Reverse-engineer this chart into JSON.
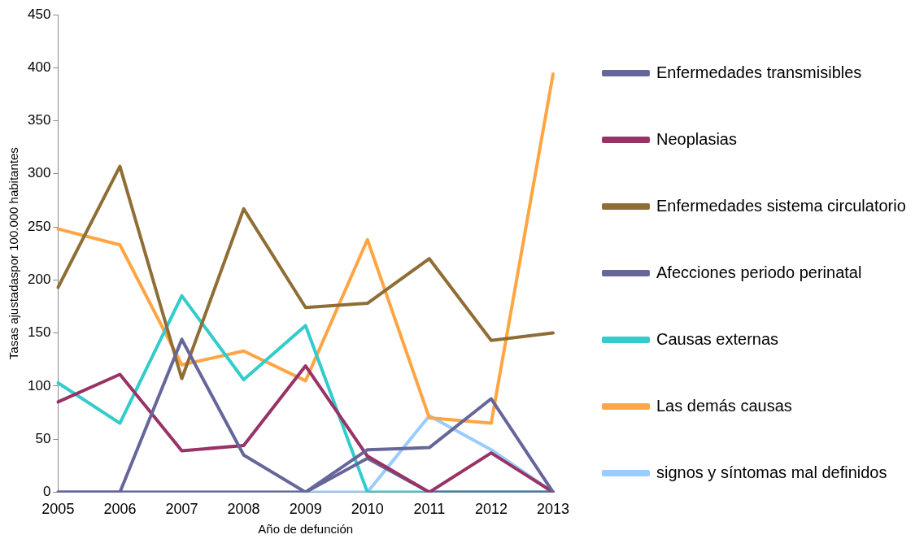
{
  "chart_data": {
    "type": "line",
    "xlabel": "Año de defunción",
    "ylabel": "Tasas ajustadaspor 100.000 habitantes",
    "categories": [
      "2005",
      "2006",
      "2007",
      "2008",
      "2009",
      "2010",
      "2011",
      "2012",
      "2013"
    ],
    "series": [
      {
        "name": "Enfermedades transmisibles",
        "color": "#66669a",
        "values": [
          0,
          0,
          144,
          35,
          0,
          40,
          42,
          88,
          0
        ]
      },
      {
        "name": "Neoplasias",
        "color": "#993366",
        "values": [
          85,
          111,
          39,
          44,
          119,
          34,
          0,
          37,
          0
        ]
      },
      {
        "name": "Enfermedades sistema circulatorio",
        "color": "#8f6e35",
        "values": [
          193,
          307,
          107,
          267,
          174,
          178,
          220,
          143,
          150
        ]
      },
      {
        "name": "Afecciones periodo perinatal",
        "color": "#66669a",
        "values": [
          0,
          0,
          0,
          0,
          0,
          32,
          0,
          0,
          0
        ]
      },
      {
        "name": "Causas externas",
        "color": "#33cccc",
        "values": [
          103,
          65,
          185,
          106,
          157,
          0,
          0,
          0,
          0
        ]
      },
      {
        "name": "Las demás causas",
        "color": "#ffa543",
        "values": [
          248,
          233,
          120,
          133,
          105,
          238,
          70,
          65,
          394
        ]
      },
      {
        "name": "signos y síntomas mal definidos",
        "color": "#99ccff",
        "values": [
          0,
          0,
          0,
          0,
          0,
          0,
          72,
          40,
          0
        ]
      }
    ],
    "ylim": [
      0,
      450
    ],
    "yticks": [
      0,
      50,
      100,
      150,
      200,
      250,
      300,
      350,
      400,
      450
    ],
    "grid": false,
    "legend": "right",
    "marker": "none",
    "line_style": "solid"
  }
}
